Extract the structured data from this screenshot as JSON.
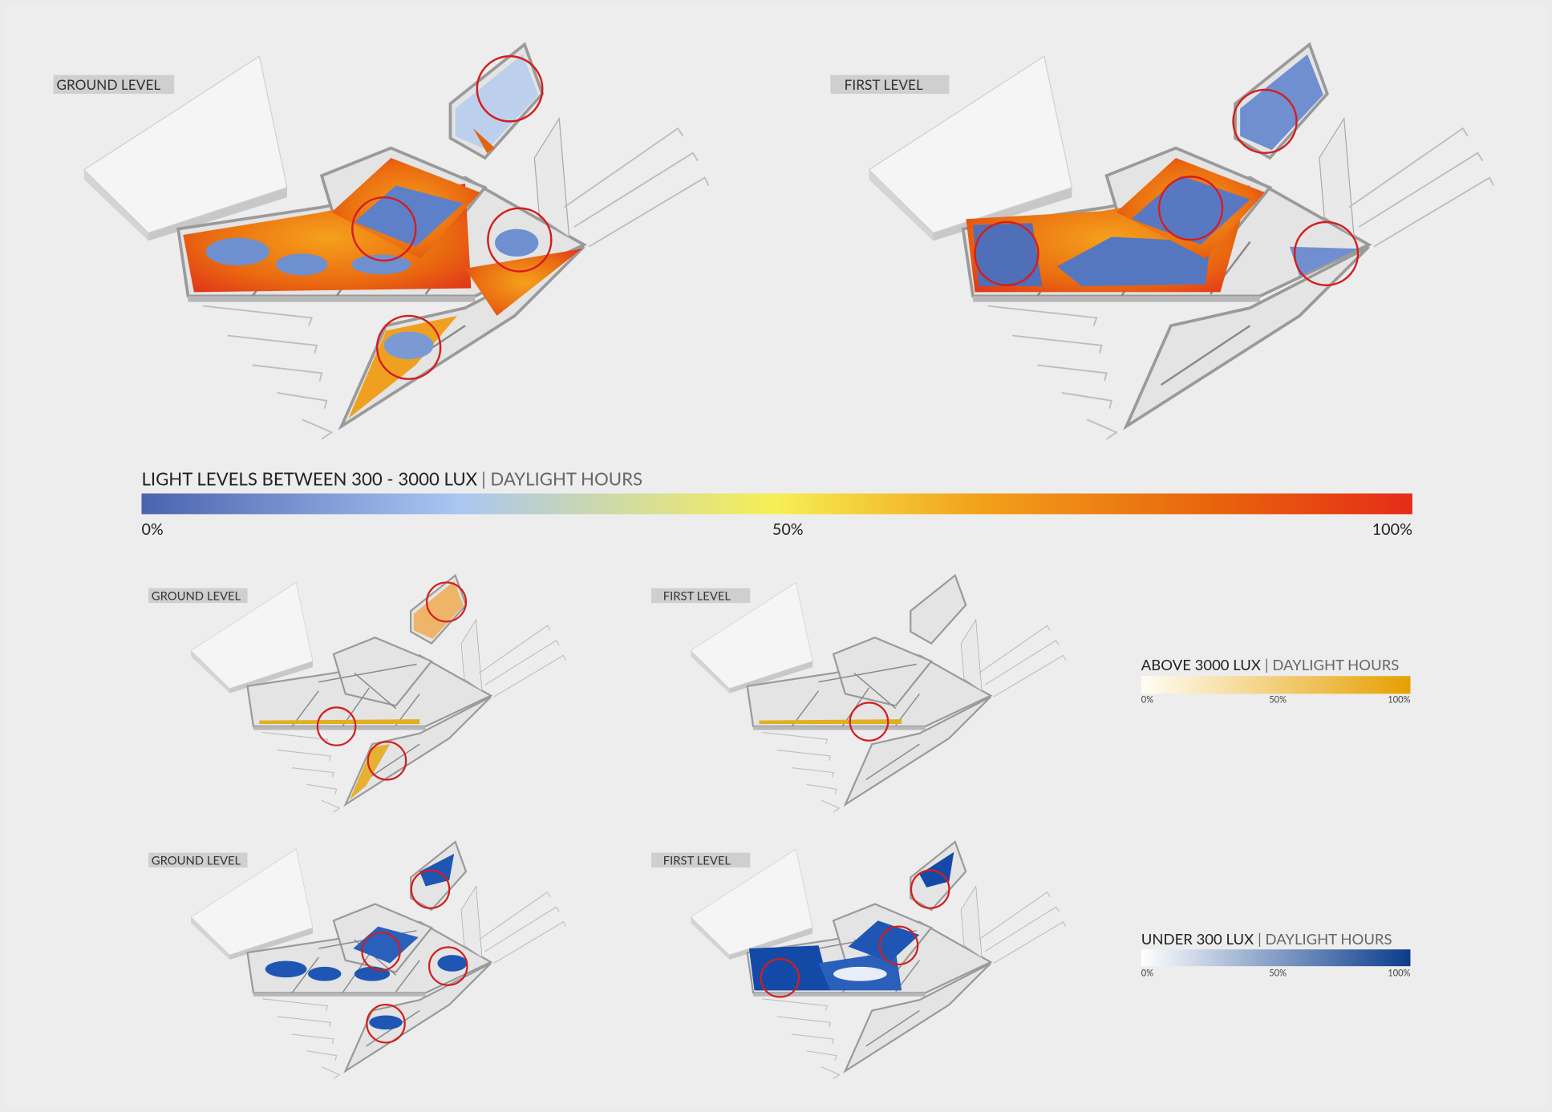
{
  "panels": {
    "top": {
      "ground": "GROUND LEVEL",
      "first": "FIRST LEVEL"
    },
    "middle": {
      "ground": "GROUND LEVEL",
      "first": "FIRST LEVEL"
    },
    "bottom": {
      "ground": "GROUND LEVEL",
      "first": "FIRST LEVEL"
    }
  },
  "legends": [
    {
      "title": "LIGHT LEVELS BETWEEN 300 - 3000 LUX",
      "subtitle": "| DAYLIGHT HOURS",
      "ticks": [
        "0%",
        "50%",
        "100%"
      ]
    },
    {
      "title": "ABOVE 3000 LUX",
      "subtitle": "| DAYLIGHT HOURS",
      "ticks": [
        "0%",
        "50%",
        "100%"
      ]
    },
    {
      "title": "UNDER 300 LUX",
      "subtitle": "| DAYLIGHT HOURS",
      "ticks": [
        "0%",
        "50%",
        "100%"
      ]
    }
  ]
}
